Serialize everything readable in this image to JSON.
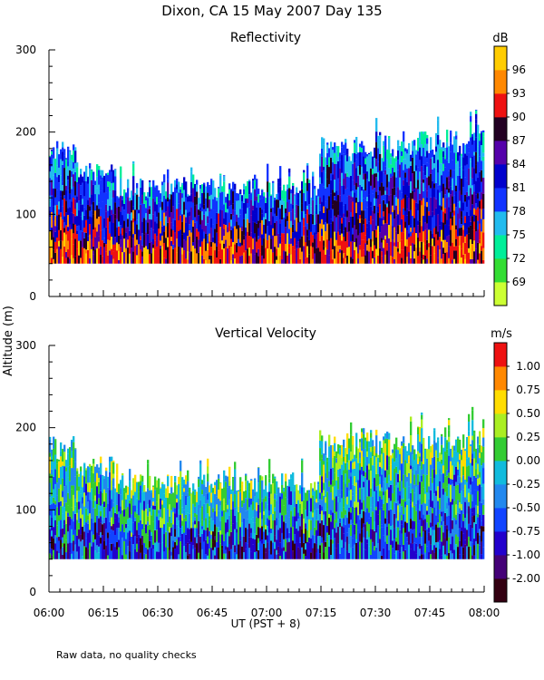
{
  "title": "Dixon, CA 15 May 2007  Day 135",
  "shared_ylabel": "Altitude (m)",
  "xlabel": "UT  (PST + 8)",
  "footnote": "Raw data, no quality checks",
  "x_ticks": [
    "06:00",
    "06:15",
    "06:30",
    "06:45",
    "07:00",
    "07:15",
    "07:30",
    "07:45",
    "08:00"
  ],
  "chart_data": [
    {
      "type": "heatmap",
      "title": "Reflectivity",
      "ylabel": "Altitude (m)",
      "xlabel": "UT  (PST + 8)",
      "xlim": [
        "06:00",
        "08:00"
      ],
      "ylim": [
        0,
        300
      ],
      "y_ticks": [
        "0",
        "100",
        "200",
        "300"
      ],
      "colorbar": {
        "unit": "dB",
        "tick_labels": [
          "69",
          "72",
          "75",
          "78",
          "81",
          "84",
          "87",
          "90",
          "93",
          "96"
        ],
        "tick_values": [
          69,
          72,
          75,
          78,
          81,
          84,
          87,
          90,
          93,
          96
        ],
        "range": [
          67.5,
          97.5
        ],
        "colors": [
          "#ccff33",
          "#33dd33",
          "#00ee99",
          "#22bbee",
          "#1133ff",
          "#0000cc",
          "#5500aa",
          "#220022",
          "#ee1111",
          "#ff8800",
          "#ffcc00"
        ]
      },
      "data_summary": {
        "bottom_altitude_m": 40,
        "typical_top_m": 140,
        "max_top_m": 230,
        "description_values_db": [
          72,
          96
        ]
      }
    },
    {
      "type": "heatmap",
      "title": "Vertical Velocity",
      "ylabel": "Altitude (m)",
      "xlabel": "UT  (PST + 8)",
      "xlim": [
        "06:00",
        "08:00"
      ],
      "ylim": [
        0,
        300
      ],
      "y_ticks": [
        "0",
        "100",
        "200",
        "300"
      ],
      "colorbar": {
        "unit": "m/s",
        "tick_labels": [
          "-2.00",
          "-1.00",
          "-0.75",
          "-0.50",
          "-0.25",
          "0.00",
          "0.25",
          "0.50",
          "0.75",
          "1.00"
        ],
        "tick_values": [
          -2.0,
          -1.0,
          -0.75,
          -0.5,
          -0.25,
          0.0,
          0.25,
          0.5,
          0.75,
          1.0
        ],
        "colors": [
          "#330011",
          "#440077",
          "#2200cc",
          "#1144ff",
          "#2288ee",
          "#11bbdd",
          "#33cc33",
          "#aaee22",
          "#ffdd00",
          "#ff8800",
          "#ee1111"
        ]
      },
      "data_summary": {
        "bottom_altitude_m": 40,
        "typical_top_m": 140,
        "max_top_m": 240
      }
    }
  ]
}
